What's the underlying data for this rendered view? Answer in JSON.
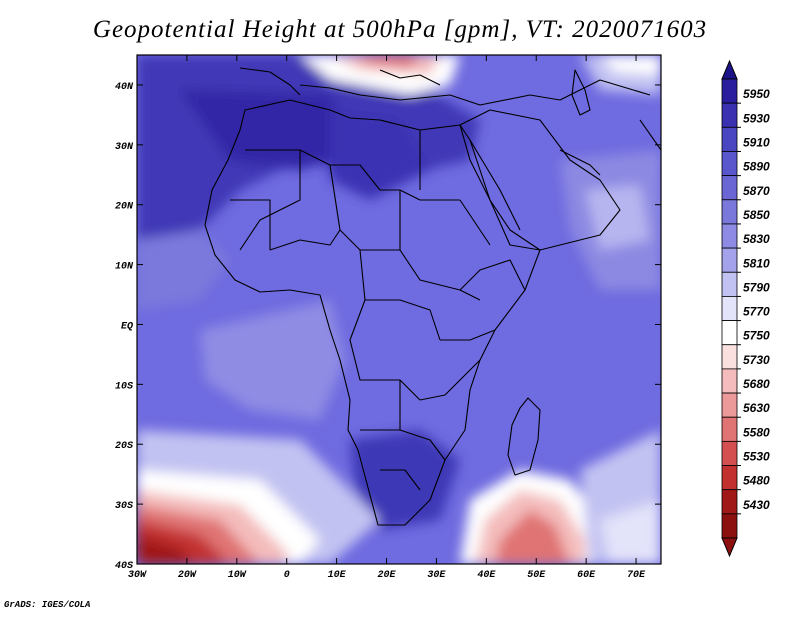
{
  "title": "Geopotential Height at 500hPa [gpm], VT: 2020071603",
  "credit": "GrADS: IGES/COLA",
  "map": {
    "variable": "Geopotential Height at 500hPa",
    "units": "gpm",
    "valid_time": "2020071603",
    "lon_ticks": [
      "30W",
      "20W",
      "10W",
      "0",
      "10E",
      "20E",
      "30E",
      "40E",
      "50E",
      "60E",
      "70E"
    ],
    "lat_ticks": [
      "40S",
      "30S",
      "20S",
      "10S",
      "EQ",
      "10N",
      "20N",
      "30N",
      "40N"
    ]
  },
  "colorbar": {
    "levels": [
      "5950",
      "5930",
      "5910",
      "5890",
      "5870",
      "5850",
      "5830",
      "5810",
      "5790",
      "5770",
      "5750",
      "5730",
      "5680",
      "5630",
      "5580",
      "5530",
      "5480",
      "5430"
    ],
    "colors": [
      "#2a1e9e",
      "#3a31b0",
      "#4a45c0",
      "#5a57cc",
      "#6a67d4",
      "#7b78dc",
      "#8d8be3",
      "#a3a2ea",
      "#c2c2f2",
      "#e3e3fa",
      "#ffffff",
      "#fbe0e0",
      "#f4bcbc",
      "#ec9999",
      "#e07373",
      "#d45050",
      "#c23030",
      "#a01818"
    ],
    "top_arrow_color": "#1c1388",
    "bottom_arrow_color": "#8c1010"
  }
}
